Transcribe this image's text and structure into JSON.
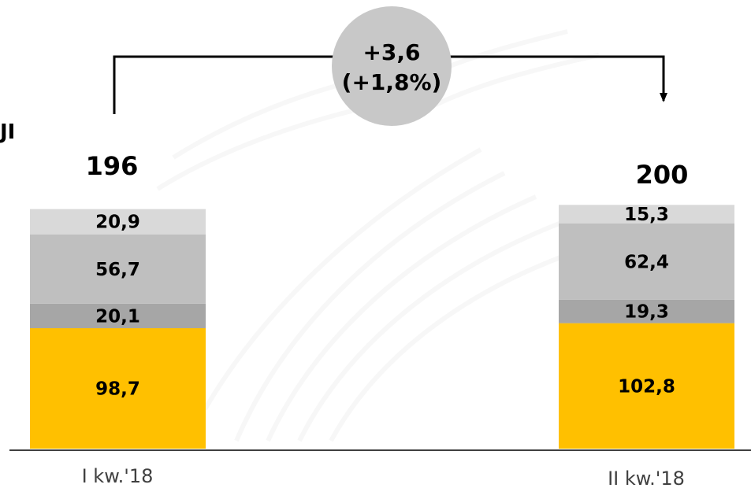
{
  "chart_data": {
    "type": "bar",
    "stacked": true,
    "categories": [
      "I kw.'18",
      "II kw.'18"
    ],
    "totals": [
      196,
      200
    ],
    "series_values": [
      [
        98.7,
        102.8
      ],
      [
        20.1,
        19.3
      ],
      [
        56.7,
        62.4
      ],
      [
        20.9,
        15.3
      ]
    ],
    "labels": [
      [
        "98,7",
        "102,8"
      ],
      [
        "20,1",
        "19,3"
      ],
      [
        "56,7",
        "62,4"
      ],
      [
        "20,9",
        "15,3"
      ]
    ],
    "total_labels": [
      "196",
      "200"
    ],
    "colors": [
      "#FFC000",
      "#A6A6A6",
      "#BFBFBF",
      "#D9D9D9"
    ],
    "change": {
      "absolute": "+3,6",
      "percent": "(+1,8%)"
    },
    "partial_left_text": "JI",
    "grid": false,
    "legend": "none"
  }
}
